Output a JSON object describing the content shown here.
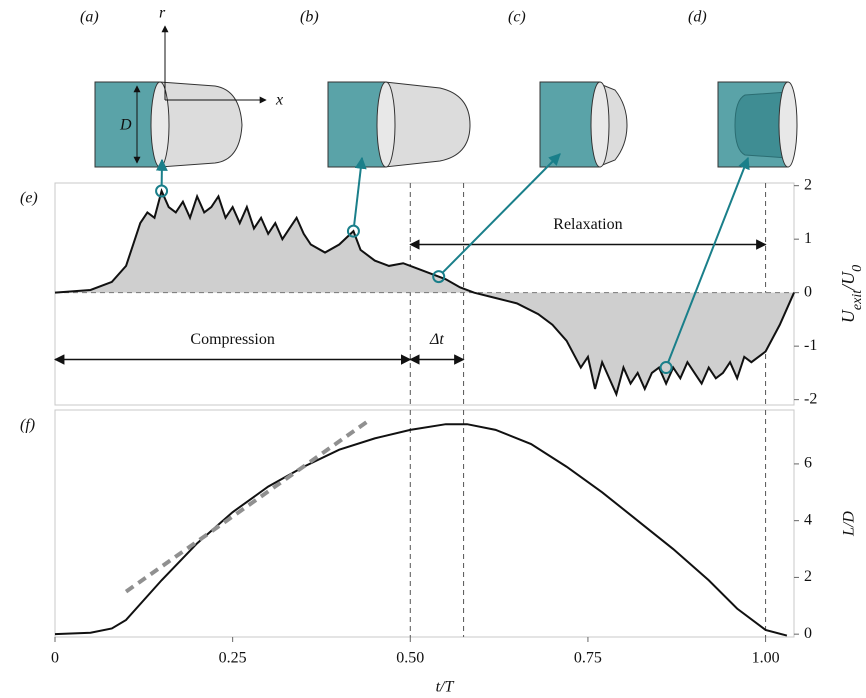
{
  "diagrams": {
    "labels": [
      "(a)",
      "(b)",
      "(c)",
      "(d)"
    ],
    "D": "D",
    "r": "r",
    "x": "x"
  },
  "chart_data": [
    {
      "type": "area",
      "panel": "(e)",
      "ylabel": [
        "U",
        "exit",
        "/U",
        "0"
      ],
      "x": [
        0,
        0.05,
        0.08,
        0.1,
        0.11,
        0.12,
        0.13,
        0.14,
        0.15,
        0.16,
        0.17,
        0.18,
        0.19,
        0.2,
        0.21,
        0.22,
        0.23,
        0.24,
        0.25,
        0.26,
        0.27,
        0.28,
        0.29,
        0.3,
        0.31,
        0.32,
        0.33,
        0.34,
        0.35,
        0.36,
        0.38,
        0.4,
        0.42,
        0.43,
        0.45,
        0.47,
        0.49,
        0.51,
        0.53,
        0.55,
        0.57,
        0.59,
        0.62,
        0.65,
        0.68,
        0.7,
        0.72,
        0.74,
        0.75,
        0.76,
        0.77,
        0.78,
        0.79,
        0.8,
        0.81,
        0.82,
        0.83,
        0.84,
        0.85,
        0.86,
        0.87,
        0.88,
        0.89,
        0.9,
        0.91,
        0.92,
        0.93,
        0.94,
        0.95,
        0.96,
        0.97,
        0.98,
        1.0,
        1.02,
        1.04
      ],
      "series": [
        {
          "color": "#111111",
          "values": [
            0,
            0.05,
            0.2,
            0.5,
            0.9,
            1.3,
            1.5,
            1.4,
            1.9,
            1.6,
            1.5,
            1.7,
            1.4,
            1.8,
            1.5,
            1.6,
            1.8,
            1.4,
            1.6,
            1.3,
            1.6,
            1.2,
            1.4,
            1.1,
            1.3,
            1.0,
            1.2,
            1.4,
            1.1,
            0.9,
            0.75,
            0.9,
            1.15,
            0.8,
            0.6,
            0.5,
            0.55,
            0.45,
            0.35,
            0.25,
            0.1,
            0.0,
            -0.1,
            -0.2,
            -0.4,
            -0.6,
            -0.9,
            -1.4,
            -1.2,
            -1.8,
            -1.3,
            -1.6,
            -1.9,
            -1.4,
            -1.7,
            -1.5,
            -1.8,
            -1.5,
            -1.4,
            -1.7,
            -1.4,
            -1.6,
            -1.3,
            -1.5,
            -1.7,
            -1.4,
            -1.6,
            -1.5,
            -1.3,
            -1.6,
            -1.2,
            -1.3,
            -1.1,
            -0.6,
            0
          ]
        }
      ],
      "fill": "#cfcfcf",
      "markers": {
        "x": [
          0.15,
          0.42,
          0.54,
          0.86
        ],
        "values": [
          1.9,
          1.15,
          0.3,
          -1.4
        ],
        "color": "#1a7f8a"
      },
      "vlines": [
        0.5,
        0.575,
        1.0
      ],
      "hline": 0,
      "annotations": [
        {
          "text": "Compression",
          "x": [
            0,
            0.5
          ],
          "y": -1.25
        },
        {
          "text": "Δt",
          "x": [
            0.5,
            0.575
          ],
          "y": -1.25
        },
        {
          "text": "Relaxation",
          "x": [
            0.5,
            1.0
          ],
          "y": 0.9
        }
      ],
      "xlim": [
        0,
        1.04
      ],
      "ylim": [
        -2.1,
        2.05
      ],
      "yticks": [
        2,
        1,
        0,
        -1,
        -2
      ]
    },
    {
      "type": "line",
      "panel": "(f)",
      "ylabel": "L/D",
      "xlabel": "t/T",
      "x": [
        0,
        0.05,
        0.08,
        0.1,
        0.15,
        0.2,
        0.25,
        0.3,
        0.35,
        0.4,
        0.45,
        0.5,
        0.55,
        0.58,
        0.62,
        0.67,
        0.72,
        0.77,
        0.82,
        0.87,
        0.92,
        0.96,
        1.0,
        1.03
      ],
      "series": [
        {
          "color": "#111111",
          "values": [
            0,
            0.05,
            0.2,
            0.5,
            1.9,
            3.2,
            4.3,
            5.2,
            5.9,
            6.5,
            6.9,
            7.2,
            7.4,
            7.4,
            7.2,
            6.7,
            5.9,
            5.0,
            4.0,
            3.0,
            1.9,
            0.9,
            0.15,
            -0.05
          ]
        }
      ],
      "slope_line": {
        "x": [
          0.1,
          0.44
        ],
        "values": [
          1.5,
          7.5
        ],
        "color": "#909090"
      },
      "vlines": [
        0.5,
        0.575,
        1.0
      ],
      "xlim": [
        0,
        1.04
      ],
      "ylim": [
        -0.1,
        7.9
      ],
      "yticks": [
        6,
        4,
        2,
        0
      ],
      "xticks": [
        0,
        0.25,
        {
          "value": 0.5,
          "label": "0.50"
        },
        0.75,
        {
          "value": 1.0,
          "label": "1.00"
        }
      ]
    }
  ]
}
